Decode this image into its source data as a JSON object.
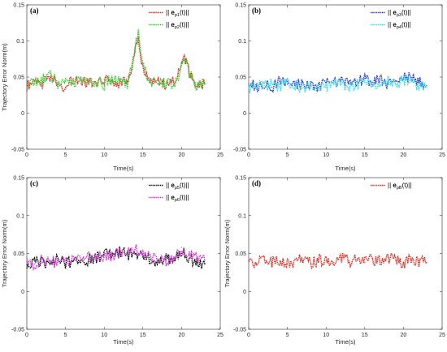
{
  "chart_data": [
    {
      "type": "line",
      "panel_label": "(a)",
      "xlabel": "Time(s)",
      "ylabel": "Trajectory Error Norm(m)",
      "xlim": [
        0,
        25
      ],
      "ylim": [
        -0.05,
        0.15
      ],
      "xticks": [
        "0",
        "5",
        "10",
        "15",
        "20",
        "25"
      ],
      "yticks": [
        "-0.05",
        "0",
        "0.05",
        "0.1",
        "0.15"
      ],
      "legend_position": "top-right",
      "series": [
        {
          "name_parts": [
            "|| ",
            "e",
            "p1",
            "(t)||"
          ],
          "color": "#e2231a",
          "x": [
            0,
            1,
            2,
            3,
            4,
            5,
            6,
            7,
            8,
            9,
            10,
            11,
            12,
            13,
            13.5,
            14,
            14.4,
            14.8,
            15.2,
            15.6,
            16,
            17,
            18,
            19,
            19.6,
            20,
            20.5,
            21,
            21.5,
            22,
            23
          ],
          "y": [
            0.038,
            0.045,
            0.04,
            0.05,
            0.042,
            0.036,
            0.048,
            0.041,
            0.045,
            0.038,
            0.047,
            0.044,
            0.04,
            0.045,
            0.055,
            0.085,
            0.105,
            0.07,
            0.057,
            0.05,
            0.042,
            0.045,
            0.038,
            0.044,
            0.055,
            0.07,
            0.075,
            0.055,
            0.045,
            0.035,
            0.04
          ]
        },
        {
          "name_parts": [
            "|| ",
            "e",
            "p2",
            "(t)||"
          ],
          "color": "#33cc33",
          "x": [
            0,
            1,
            2,
            3,
            4,
            5,
            6,
            7,
            8,
            9,
            10,
            11,
            12,
            13,
            13.5,
            14,
            14.4,
            14.8,
            15.2,
            15.6,
            16,
            17,
            18,
            19,
            19.6,
            20,
            20.5,
            21,
            21.5,
            22,
            23
          ],
          "y": [
            0.042,
            0.04,
            0.046,
            0.055,
            0.04,
            0.044,
            0.04,
            0.046,
            0.04,
            0.043,
            0.04,
            0.049,
            0.043,
            0.04,
            0.06,
            0.09,
            0.11,
            0.073,
            0.06,
            0.052,
            0.045,
            0.04,
            0.042,
            0.04,
            0.052,
            0.066,
            0.07,
            0.058,
            0.046,
            0.038,
            0.042
          ]
        }
      ]
    },
    {
      "type": "line",
      "panel_label": "(b)",
      "xlabel": "Time(s)",
      "ylabel": "",
      "xlim": [
        0,
        25
      ],
      "ylim": [
        -0.05,
        0.15
      ],
      "xticks": [
        "0",
        "5",
        "10",
        "15",
        "20",
        "25"
      ],
      "yticks": [
        "-0.05",
        "0",
        "0.05",
        "0.1",
        "0.15"
      ],
      "legend_position": "top-right",
      "series": [
        {
          "name_parts": [
            "|| ",
            "e",
            "p3",
            "(t)||"
          ],
          "color": "#1f2fd6",
          "x": [
            0,
            1,
            2,
            3,
            4,
            5,
            6,
            7,
            8,
            9,
            10,
            11,
            12,
            13,
            14,
            15,
            16,
            17,
            18,
            19,
            20,
            21,
            22,
            23
          ],
          "y": [
            0.04,
            0.037,
            0.042,
            0.036,
            0.044,
            0.04,
            0.038,
            0.043,
            0.04,
            0.035,
            0.042,
            0.04,
            0.046,
            0.041,
            0.044,
            0.048,
            0.043,
            0.046,
            0.04,
            0.045,
            0.048,
            0.05,
            0.044,
            0.038
          ]
        },
        {
          "name_parts": [
            "|| ",
            "e",
            "p4",
            "(t)||"
          ],
          "color": "#33dde6",
          "x": [
            0,
            1,
            2,
            3,
            4,
            5,
            6,
            7,
            8,
            9,
            10,
            11,
            12,
            13,
            14,
            15,
            16,
            17,
            18,
            19,
            20,
            21,
            22,
            23
          ],
          "y": [
            0.035,
            0.04,
            0.038,
            0.04,
            0.036,
            0.042,
            0.04,
            0.035,
            0.04,
            0.038,
            0.036,
            0.041,
            0.04,
            0.036,
            0.04,
            0.045,
            0.04,
            0.043,
            0.044,
            0.04,
            0.046,
            0.045,
            0.038,
            0.035
          ]
        }
      ]
    },
    {
      "type": "line",
      "panel_label": "(c)",
      "xlabel": "Time(s)",
      "ylabel": "Trajectory Error Norm(m)",
      "xlim": [
        0,
        25
      ],
      "ylim": [
        -0.05,
        0.15
      ],
      "xticks": [
        "0",
        "5",
        "10",
        "15",
        "20",
        "25"
      ],
      "yticks": [
        "-0.05",
        "0",
        "0.05",
        "0.1",
        "0.15"
      ],
      "legend_position": "top-right",
      "series": [
        {
          "name_parts": [
            "|| ",
            "e",
            "p5",
            "(t)||"
          ],
          "color": "#000000",
          "x": [
            0,
            1,
            2,
            3,
            4,
            5,
            6,
            7,
            8,
            9,
            10,
            11,
            12,
            13,
            14,
            15,
            16,
            17,
            18,
            19,
            20,
            21,
            22,
            23
          ],
          "y": [
            0.035,
            0.04,
            0.038,
            0.035,
            0.042,
            0.036,
            0.04,
            0.038,
            0.042,
            0.045,
            0.048,
            0.05,
            0.052,
            0.048,
            0.05,
            0.045,
            0.042,
            0.04,
            0.042,
            0.04,
            0.05,
            0.044,
            0.038,
            0.036
          ]
        },
        {
          "name_parts": [
            "|| ",
            "e",
            "p6",
            "(t)||"
          ],
          "color": "#d633d6",
          "x": [
            0,
            1,
            2,
            3,
            4,
            5,
            6,
            7,
            8,
            9,
            10,
            11,
            12,
            13,
            14,
            15,
            16,
            17,
            18,
            19,
            20,
            21,
            22,
            23
          ],
          "y": [
            0.04,
            0.036,
            0.042,
            0.04,
            0.038,
            0.04,
            0.042,
            0.04,
            0.044,
            0.046,
            0.045,
            0.048,
            0.05,
            0.052,
            0.055,
            0.05,
            0.045,
            0.042,
            0.04,
            0.044,
            0.058,
            0.048,
            0.042,
            0.04
          ]
        }
      ]
    },
    {
      "type": "line",
      "panel_label": "(d)",
      "xlabel": "Time(s)",
      "ylabel": "Trajectory Error Norm(m)",
      "xlim": [
        0,
        25
      ],
      "ylim": [
        -0.05,
        0.15
      ],
      "xticks": [
        "0",
        "5",
        "10",
        "15",
        "20",
        "25"
      ],
      "yticks": [
        "-0.05",
        "0",
        "0.05",
        "0.1",
        "0.15"
      ],
      "legend_position": "top-right",
      "series": [
        {
          "name_parts": [
            "|| ",
            "e",
            "pB",
            "(t)||"
          ],
          "color": "#e2231a",
          "x": [
            0,
            1,
            2,
            3,
            4,
            5,
            6,
            7,
            8,
            9,
            10,
            11,
            12,
            13,
            14,
            15,
            16,
            17,
            18,
            19,
            20,
            21,
            22,
            23
          ],
          "y": [
            0.04,
            0.037,
            0.042,
            0.038,
            0.04,
            0.036,
            0.042,
            0.04,
            0.037,
            0.042,
            0.04,
            0.038,
            0.044,
            0.04,
            0.042,
            0.038,
            0.043,
            0.04,
            0.045,
            0.04,
            0.038,
            0.042,
            0.04,
            0.038
          ]
        }
      ]
    }
  ]
}
